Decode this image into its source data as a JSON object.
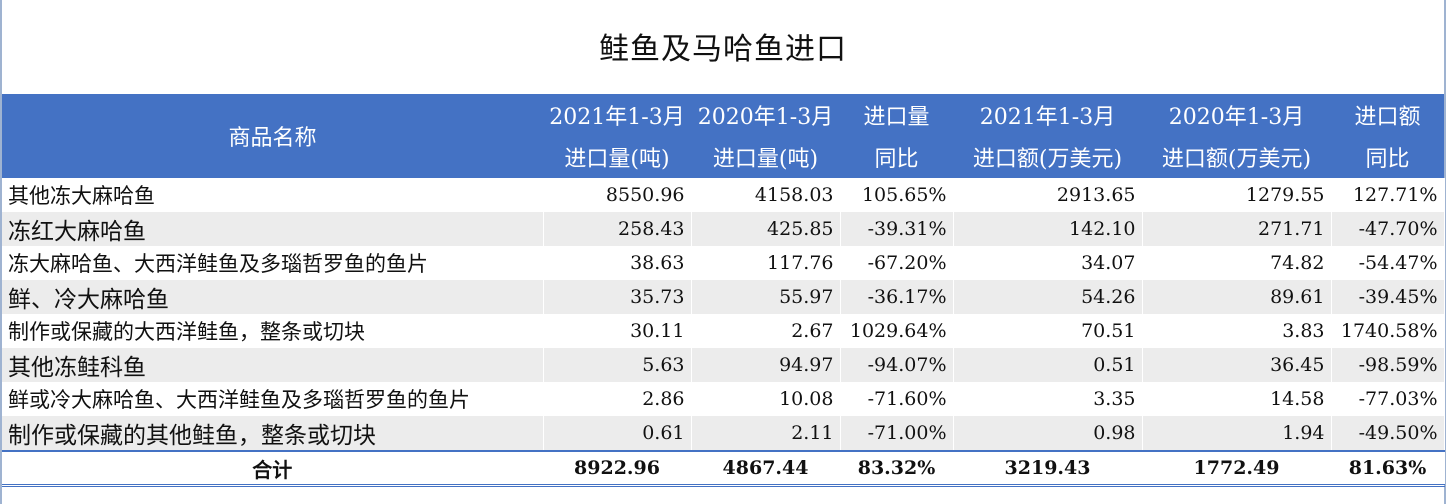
{
  "title": "鲑鱼及马哈鱼进口",
  "headers": {
    "name": "商品名称",
    "col1": [
      "2021年1-3月",
      "进口量(吨)"
    ],
    "col2": [
      "2020年1-3月",
      "进口量(吨)"
    ],
    "col3": [
      "进口量",
      "同比"
    ],
    "col4": [
      "2021年1-3月",
      "进口额(万美元)"
    ],
    "col5": [
      "2020年1-3月",
      "进口额(万美元)"
    ],
    "col6": [
      "进口额",
      "同比"
    ]
  },
  "rows": [
    {
      "name": "其他冻大麻哈鱼",
      "v1": "8550.96",
      "v2": "4158.03",
      "v3": "105.65%",
      "v4": "2913.65",
      "v5": "1279.55",
      "v6": "127.71%"
    },
    {
      "name": "冻红大麻哈鱼",
      "v1": "258.43",
      "v2": "425.85",
      "v3": "-39.31%",
      "v4": "142.10",
      "v5": "271.71",
      "v6": "-47.70%"
    },
    {
      "name": "冻大麻哈鱼、大西洋鲑鱼及多瑙哲罗鱼的鱼片",
      "v1": "38.63",
      "v2": "117.76",
      "v3": "-67.20%",
      "v4": "34.07",
      "v5": "74.82",
      "v6": "-54.47%"
    },
    {
      "name": "鲜、冷大麻哈鱼",
      "v1": "35.73",
      "v2": "55.97",
      "v3": "-36.17%",
      "v4": "54.26",
      "v5": "89.61",
      "v6": "-39.45%"
    },
    {
      "name": "制作或保藏的大西洋鲑鱼，整条或切块",
      "v1": "30.11",
      "v2": "2.67",
      "v3": "1029.64%",
      "v4": "70.51",
      "v5": "3.83",
      "v6": "1740.58%"
    },
    {
      "name": "其他冻鲑科鱼",
      "v1": "5.63",
      "v2": "94.97",
      "v3": "-94.07%",
      "v4": "0.51",
      "v5": "36.45",
      "v6": "-98.59%"
    },
    {
      "name": "鲜或冷大麻哈鱼、大西洋鲑鱼及多瑙哲罗鱼的鱼片",
      "v1": "2.86",
      "v2": "10.08",
      "v3": "-71.60%",
      "v4": "3.35",
      "v5": "14.58",
      "v6": "-77.03%"
    },
    {
      "name": "制作或保藏的其他鲑鱼，整条或切块",
      "v1": "0.61",
      "v2": "2.11",
      "v3": "-71.00%",
      "v4": "0.98",
      "v5": "1.94",
      "v6": "-49.50%"
    }
  ],
  "total": {
    "name": "合计",
    "v1": "8922.96",
    "v2": "4867.44",
    "v3": "83.32%",
    "v4": "3219.43",
    "v5": "1772.49",
    "v6": "81.63%"
  }
}
